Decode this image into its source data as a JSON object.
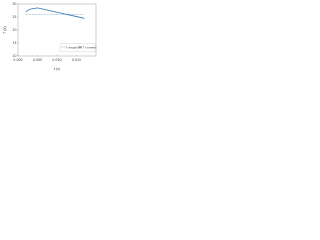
{
  "chart_data": {
    "type": "line",
    "x_label": "t (s)",
    "y_label": "T (K)",
    "x": [
      0.002,
      0.003,
      0.005,
      0.008,
      0.011,
      0.014,
      0.017
    ],
    "series": [
      {
        "name": "T empirical",
        "color": "#9cc3e6",
        "dash": true,
        "values": [
          26,
          26,
          26,
          26,
          26,
          26,
          26
        ]
      },
      {
        "name": "T numeric",
        "color": "#2e75b6",
        "dash": false,
        "values": [
          27,
          28,
          28.5,
          27.5,
          26.5,
          25.5,
          24.5
        ]
      }
    ],
    "xlim": [
      0,
      0.02
    ],
    "xticks": [
      {
        "value": 0,
        "label": "0.000"
      },
      {
        "value": 0.005,
        "label": "0.005"
      },
      {
        "value": 0.01,
        "label": "0.010"
      },
      {
        "value": 0.015,
        "label": "0.015"
      }
    ],
    "ylim": [
      10,
      30
    ],
    "yticks": [
      10,
      15,
      20,
      25,
      30
    ],
    "legend": "lower-right"
  }
}
